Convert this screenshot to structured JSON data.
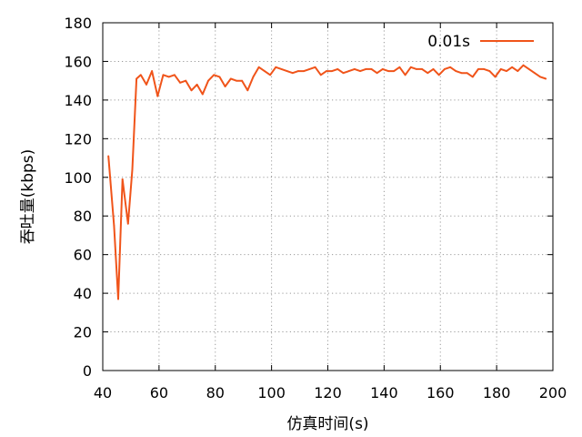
{
  "chart_data": {
    "type": "line",
    "xlabel": "仿真时间(s)",
    "ylabel": "吞吐量(kbps)",
    "xlim": [
      40,
      200
    ],
    "ylim": [
      0,
      180
    ],
    "xticks": [
      40,
      60,
      80,
      100,
      120,
      140,
      160,
      180,
      200
    ],
    "yticks": [
      0,
      20,
      40,
      60,
      80,
      100,
      120,
      140,
      160,
      180
    ],
    "xtick_labels": [
      "40",
      "60",
      "80",
      "100",
      "120",
      "140",
      "160",
      "180",
      "200"
    ],
    "ytick_labels": [
      "0",
      "20",
      "40",
      "60",
      "80",
      "100",
      "120",
      "140",
      "160",
      "180"
    ],
    "grid": true,
    "legend_position": "top-right",
    "series": [
      {
        "name": "0.01s",
        "color": "#f0541a",
        "x": [
          42,
          44,
          45.5,
          47,
          49,
          50.5,
          52,
          53.5,
          55.5,
          57.5,
          59.5,
          61.5,
          63.5,
          65.5,
          67.5,
          69.5,
          71.5,
          73.5,
          75.5,
          77.5,
          79.5,
          81.5,
          83.5,
          85.5,
          87.5,
          89.5,
          91.5,
          93.5,
          95.5,
          97.5,
          99.5,
          101.5,
          103.5,
          105.5,
          107.5,
          109.5,
          111.5,
          113.5,
          115.5,
          117.5,
          119.5,
          121.5,
          123.5,
          125.5,
          127.5,
          129.5,
          131.5,
          133.5,
          135.5,
          137.5,
          139.5,
          141.5,
          143.5,
          145.5,
          147.5,
          149.5,
          151.5,
          153.5,
          155.5,
          157.5,
          159.5,
          161.5,
          163.5,
          165.5,
          167.5,
          169.5,
          171.5,
          173.5,
          175.5,
          177.5,
          179.5,
          181.5,
          183.5,
          185.5,
          187.5,
          189.5,
          191.5,
          193.5,
          195.5,
          197.5
        ],
        "y": [
          111,
          75,
          37,
          99,
          76,
          104,
          151,
          153,
          148,
          155,
          142,
          153,
          152,
          153,
          149,
          150,
          145,
          148,
          143,
          150,
          153,
          152,
          147,
          151,
          150,
          150,
          145,
          152,
          157,
          155,
          153,
          157,
          156,
          155,
          154,
          155,
          155,
          156,
          157,
          153,
          155,
          155,
          156,
          154,
          155,
          156,
          155,
          156,
          156,
          154,
          156,
          155,
          155,
          157,
          153,
          157,
          156,
          156,
          154,
          156,
          153,
          156,
          157,
          155,
          154,
          154,
          152,
          156,
          156,
          155,
          152,
          156,
          155,
          157,
          155,
          158,
          156,
          154,
          152,
          151
        ]
      }
    ]
  }
}
